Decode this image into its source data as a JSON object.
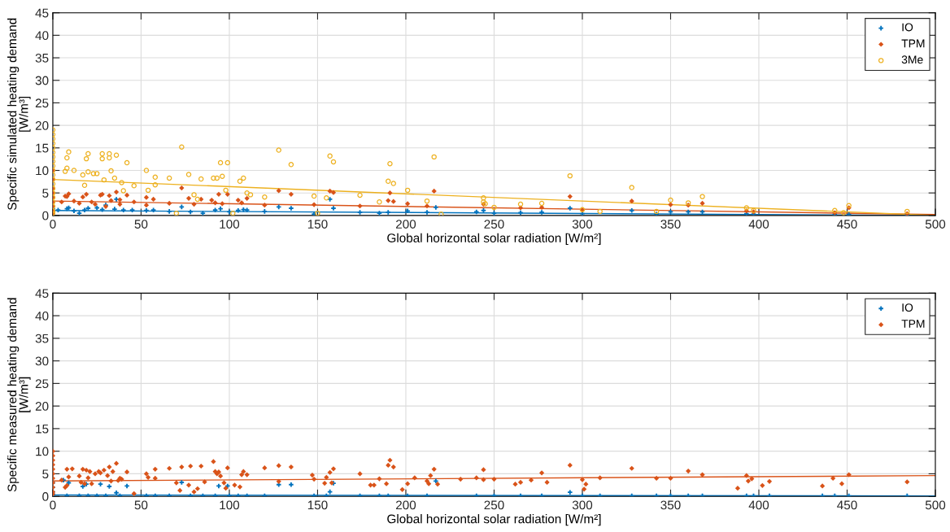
{
  "chart_data": [
    {
      "type": "scatter",
      "xlabel": "Global horizontal solar radiation [W/m²]",
      "ylabel": "Specific simulated heating demand\n[W/m³]",
      "xlim": [
        0,
        500
      ],
      "xticks": [
        0,
        50,
        100,
        150,
        200,
        250,
        300,
        350,
        400,
        450,
        500
      ],
      "ylim": [
        0,
        45
      ],
      "yticks": [
        0,
        5,
        10,
        15,
        20,
        25,
        30,
        35,
        40,
        45
      ],
      "grid": true,
      "legend": "top right",
      "series": [
        {
          "name": "IO",
          "color": "#0072bd",
          "marker": "cross",
          "x": [
            0,
            0,
            0,
            0,
            0,
            0,
            3,
            8,
            9,
            12,
            15,
            18,
            20,
            25,
            28,
            30,
            35,
            36,
            40,
            45,
            53,
            57,
            66,
            73,
            78,
            85,
            92,
            95,
            100,
            105,
            108,
            110,
            120,
            128,
            135,
            148,
            157,
            159,
            174,
            185,
            190,
            201,
            212,
            217,
            240,
            244,
            250,
            265,
            277,
            293,
            300,
            328,
            342,
            350,
            360,
            368,
            393,
            397,
            443,
            451,
            484
          ],
          "values": [
            4,
            3,
            2,
            1.5,
            1,
            0.5,
            1.2,
            1.5,
            1.7,
            1,
            0.5,
            1.2,
            1.6,
            1.7,
            1.3,
            2.3,
            1.4,
            3.6,
            1.2,
            1.2,
            1.1,
            1.2,
            0.9,
            1.9,
            0.8,
            0.5,
            1.2,
            1.5,
            0.8,
            1.1,
            1.3,
            1.2,
            0.9,
            1.9,
            1.6,
            0.3,
            3.6,
            1.6,
            0.7,
            0.5,
            0.7,
            1,
            0.7,
            1.8,
            0.8,
            1.1,
            0.5,
            0.6,
            0.7,
            1.6,
            0.4,
            1.1,
            0.3,
            0.8,
            0.8,
            0.8,
            0.4,
            0.3,
            0.2,
            0.2,
            0.1
          ]
        },
        {
          "name": "TPM",
          "color": "#d95319",
          "marker": "diamond",
          "x": [
            0,
            0,
            0,
            0,
            0,
            0,
            0,
            0,
            0,
            5,
            7,
            8,
            9,
            12,
            15,
            17,
            19,
            22,
            24,
            27,
            28,
            30,
            32,
            33,
            36,
            38,
            38,
            42,
            46,
            53,
            53,
            57,
            66,
            73,
            77,
            80,
            84,
            90,
            92,
            94,
            96,
            99,
            105,
            107,
            110,
            120,
            128,
            135,
            148,
            157,
            159,
            174,
            190,
            191,
            193,
            201,
            212,
            216,
            244,
            265,
            277,
            293,
            300,
            328,
            350,
            360,
            368,
            393,
            397,
            443,
            451,
            484
          ],
          "values": [
            10,
            8,
            6,
            5,
            4,
            3,
            2,
            1,
            0.5,
            3,
            4.3,
            4.2,
            4.8,
            3.2,
            2.7,
            4.1,
            4.7,
            3,
            2.5,
            4.5,
            4.7,
            2,
            4.4,
            3.3,
            5.2,
            3.5,
            2.5,
            4.5,
            3,
            4,
            2.3,
            3.6,
            2.7,
            6.1,
            3.8,
            2.5,
            3.6,
            3.4,
            2.8,
            4.7,
            2.6,
            4.7,
            3.4,
            2.8,
            3.8,
            2.3,
            5.5,
            4.7,
            2.4,
            5.4,
            5.1,
            2.1,
            3.3,
            5,
            3.1,
            2.6,
            2.1,
            5.4,
            2.5,
            1.7,
            1.8,
            4.2,
            1.2,
            3.2,
            2.4,
            2.3,
            2.7,
            1,
            0.8,
            0.6,
            1.7,
            0.4
          ]
        },
        {
          "name": "3Me",
          "color": "#edb120",
          "marker": "circle",
          "x": [
            0,
            0,
            0,
            0,
            0,
            0,
            0,
            0,
            0,
            0,
            0,
            0,
            0,
            0,
            0,
            0,
            0,
            0,
            0,
            0,
            7,
            8,
            8,
            9,
            12,
            17,
            18,
            19,
            20,
            20,
            23,
            25,
            28,
            28,
            29,
            32,
            32,
            33,
            35,
            36,
            39,
            40,
            42,
            46,
            53,
            54,
            58,
            58,
            66,
            70,
            73,
            77,
            80,
            82,
            84,
            91,
            93,
            95,
            96,
            98,
            99,
            102,
            106,
            108,
            110,
            112,
            120,
            128,
            135,
            148,
            150,
            155,
            157,
            159,
            174,
            185,
            190,
            191,
            193,
            201,
            212,
            216,
            220,
            244,
            244,
            245,
            250,
            265,
            277,
            293,
            300,
            310,
            328,
            342,
            350,
            360,
            368,
            393,
            397,
            443,
            448,
            451,
            484
          ],
          "values": [
            19,
            18,
            17,
            16,
            15,
            14,
            13,
            12,
            11,
            10,
            9,
            8,
            7,
            6,
            5,
            4,
            3,
            2,
            1,
            0.5,
            9.8,
            10.5,
            12.8,
            14.1,
            10,
            9,
            6.7,
            12.6,
            13.7,
            9.7,
            9.3,
            9.3,
            12.6,
            13.7,
            7.9,
            12.8,
            13.7,
            9.9,
            8.3,
            13.4,
            7.3,
            5.5,
            11.7,
            6.6,
            10,
            5.6,
            8.5,
            6.8,
            8.3,
            0.5,
            15.2,
            9.1,
            4.6,
            3.6,
            8.1,
            8.3,
            8.3,
            11.7,
            8.7,
            5.6,
            11.7,
            0.5,
            7.6,
            8.3,
            5,
            4.6,
            4.1,
            14.5,
            11.3,
            4.3,
            0.5,
            3.9,
            13.2,
            11.9,
            4.5,
            3,
            7.6,
            11.5,
            7.1,
            5.6,
            3.2,
            13,
            0.3,
            3.9,
            3,
            2.6,
            1.8,
            2.5,
            2.7,
            8.8,
            1.3,
            0.9,
            6.2,
            0.9,
            3.4,
            2.8,
            4.2,
            1.7,
            1.1,
            1.1,
            0.6,
            2.2,
            0.9
          ]
        },
        {
          "type": "line",
          "color": "#0072bd",
          "x": [
            0,
            500
          ],
          "values": [
            1.1,
            0
          ]
        },
        {
          "type": "line",
          "color": "#d95319",
          "x": [
            0,
            500
          ],
          "values": [
            3.2,
            0.2
          ]
        },
        {
          "type": "line",
          "color": "#edb120",
          "x": [
            0,
            500
          ],
          "values": [
            8,
            0
          ]
        }
      ]
    },
    {
      "type": "scatter",
      "xlabel": "Global horizontal solar radiation [W/m²]",
      "ylabel": "Specific measured heating demand\n[W/m³]",
      "xlim": [
        0,
        500
      ],
      "xticks": [
        0,
        50,
        100,
        150,
        200,
        250,
        300,
        350,
        400,
        450,
        500
      ],
      "ylim": [
        0,
        45
      ],
      "yticks": [
        0,
        5,
        10,
        15,
        20,
        25,
        30,
        35,
        40,
        45
      ],
      "grid": true,
      "legend": "top right",
      "series": [
        {
          "name": "IO",
          "color": "#0072bd",
          "marker": "cross",
          "x": [
            0,
            0,
            0,
            0,
            0,
            6,
            9,
            17,
            19,
            27,
            32,
            36,
            42,
            73,
            94,
            99,
            128,
            135,
            157,
            159,
            217,
            293,
            8,
            15,
            20,
            25,
            30,
            38,
            53,
            58,
            66,
            78,
            85,
            92,
            100,
            105,
            110,
            120,
            148,
            155,
            174,
            185,
            190,
            201,
            212,
            240,
            250,
            265,
            277,
            300,
            310,
            328,
            342,
            350,
            360,
            368,
            393,
            397,
            406,
            436,
            443,
            451,
            484
          ],
          "values": [
            3,
            2,
            1,
            0.5,
            0.2,
            3.6,
            3,
            2.2,
            2.7,
            2.7,
            2.2,
            0.8,
            2.3,
            3.1,
            2.3,
            2.3,
            2.6,
            2.6,
            1,
            2.9,
            3.4,
            0.9,
            0.1,
            0.1,
            0.1,
            0.1,
            0.1,
            0.1,
            0.1,
            0.1,
            0.1,
            0.1,
            0.1,
            0.1,
            0.1,
            0.1,
            0.1,
            0.1,
            0.1,
            0.1,
            0.1,
            0.1,
            0.1,
            0.1,
            0.1,
            0.1,
            0.1,
            0.1,
            0.1,
            0.1,
            0.1,
            0.1,
            0.1,
            0.1,
            0.1,
            0.1,
            0.1,
            0.1,
            0.1,
            0.1,
            0.1,
            0.1,
            0.1
          ]
        },
        {
          "name": "TPM",
          "color": "#d95319",
          "marker": "diamond",
          "x": [
            0,
            0,
            0,
            0,
            0,
            0,
            0,
            0,
            0,
            0,
            0,
            5,
            7,
            8,
            8,
            9,
            11,
            15,
            16,
            17,
            18,
            19,
            20,
            21,
            22,
            24,
            26,
            27,
            29,
            31,
            32,
            33,
            34,
            36,
            37,
            38,
            39,
            42,
            46,
            53,
            54,
            58,
            58,
            66,
            70,
            72,
            73,
            77,
            78,
            80,
            82,
            84,
            86,
            91,
            92,
            93,
            94,
            95,
            97,
            98,
            99,
            103,
            106,
            107,
            108,
            110,
            120,
            128,
            128,
            135,
            147,
            148,
            154,
            155,
            157,
            158,
            159,
            174,
            180,
            182,
            185,
            189,
            190,
            191,
            193,
            198,
            201,
            205,
            212,
            213,
            214,
            216,
            218,
            231,
            240,
            244,
            244,
            250,
            262,
            265,
            271,
            277,
            280,
            293,
            300,
            301,
            302,
            310,
            328,
            342,
            350,
            360,
            368,
            388,
            393,
            394,
            396,
            402,
            406,
            436,
            442,
            447,
            451,
            484
          ],
          "values": [
            10,
            9,
            8,
            7,
            6,
            5,
            4,
            3,
            2,
            1,
            0.5,
            3.6,
            2,
            2.4,
            6,
            4.3,
            6.1,
            4.5,
            3.1,
            6,
            2.8,
            5.8,
            4.1,
            5.5,
            2.8,
            5,
            5.5,
            5.2,
            5.8,
            4.6,
            6.5,
            3.4,
            5.5,
            7.3,
            3.5,
            4,
            3.8,
            5.4,
            0.6,
            5,
            4.2,
            6,
            4,
            6.2,
            3,
            1.3,
            6.5,
            2.5,
            6.7,
            1,
            1.7,
            6.7,
            3.2,
            7.7,
            5.5,
            5,
            5.4,
            4.5,
            3,
            1.8,
            6.3,
            2.5,
            2.1,
            4.8,
            5.5,
            4.8,
            6.3,
            6.8,
            3.3,
            6.5,
            4.7,
            3.8,
            2.9,
            4.2,
            5.3,
            3,
            6.1,
            5,
            2.5,
            2.5,
            3.9,
            2.8,
            6.9,
            8,
            6.5,
            1.5,
            2.8,
            4.1,
            3.4,
            2.8,
            4.6,
            6,
            2.7,
            3.8,
            4.1,
            3.7,
            5.9,
            3.8,
            2.7,
            3.1,
            3.6,
            5.2,
            3.1,
            6.9,
            3.7,
            1.6,
            2.7,
            4.1,
            6.2,
            4,
            4,
            5.6,
            4.8,
            1.8,
            4.6,
            3.4,
            3.9,
            2.4,
            3.3,
            2.3,
            4,
            2.8,
            4.8,
            3.2
          ]
        },
        {
          "type": "line",
          "color": "#0072bd",
          "x": [
            0,
            500
          ],
          "values": [
            0.3,
            0.1
          ]
        },
        {
          "type": "line",
          "color": "#d95319",
          "x": [
            0,
            500
          ],
          "values": [
            3.4,
            4.6
          ]
        }
      ]
    }
  ]
}
